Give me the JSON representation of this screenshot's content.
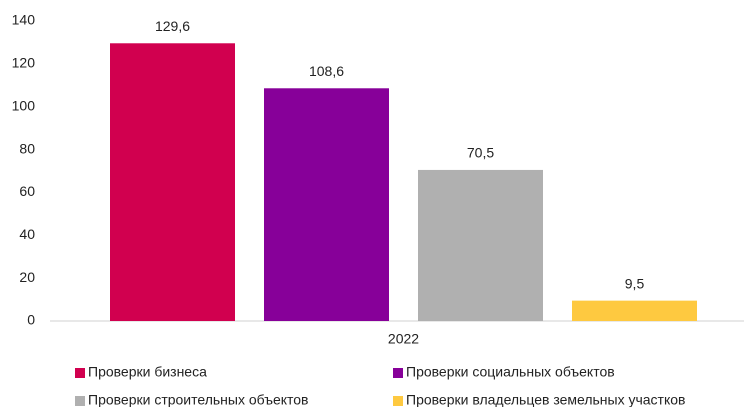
{
  "chart_data": {
    "type": "bar",
    "categories": [
      "2022"
    ],
    "series": [
      {
        "name": "Проверки бизнеса",
        "color": "#d1004f",
        "values": [
          129.6
        ],
        "value_labels": [
          "129,6"
        ]
      },
      {
        "name": "Проверки социальных объектов",
        "color": "#870099",
        "values": [
          108.6
        ],
        "value_labels": [
          "108,6"
        ]
      },
      {
        "name": "Проверки строительных объектов",
        "color": "#b0b0b0",
        "values": [
          70.5
        ],
        "value_labels": [
          "70,5"
        ]
      },
      {
        "name": "Проверки владельцев земельных участков",
        "color": "#fec940",
        "values": [
          9.5
        ],
        "value_labels": [
          "9,5"
        ]
      }
    ],
    "ylim": [
      0,
      140
    ],
    "yticks": [
      0,
      20,
      40,
      60,
      80,
      100,
      120,
      140
    ],
    "grid": false,
    "legend": "bottom"
  }
}
